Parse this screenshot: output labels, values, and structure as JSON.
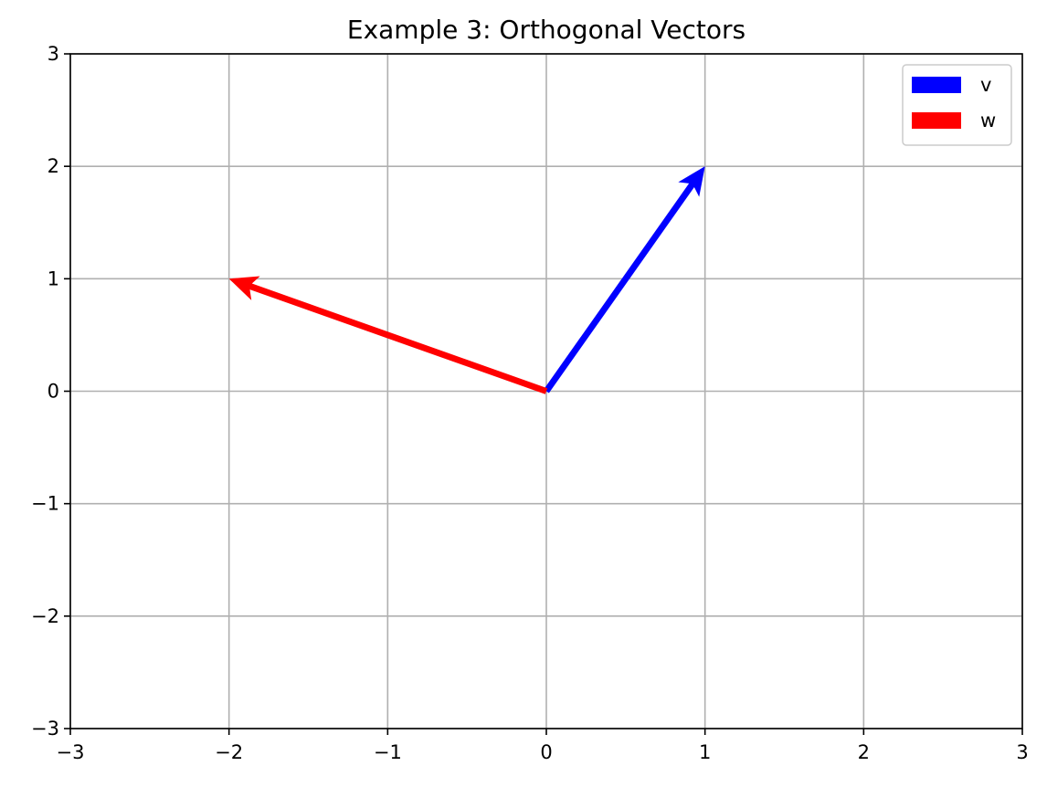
{
  "chart_data": {
    "type": "quiver",
    "title": "Example 3: Orthogonal Vectors",
    "xlabel": "",
    "ylabel": "",
    "xlim": [
      -3,
      3
    ],
    "ylim": [
      -3,
      3
    ],
    "xticks": [
      "−3",
      "−2",
      "−1",
      "0",
      "1",
      "2",
      "3"
    ],
    "yticks": [
      "−3",
      "−2",
      "−1",
      "0",
      "1",
      "2",
      "3"
    ],
    "grid": true,
    "legend_position": "top-right",
    "series": [
      {
        "name": "v",
        "color": "#0000ff",
        "x0": 0,
        "y0": 0,
        "dx": 1,
        "dy": 2
      },
      {
        "name": "w",
        "color": "#ff0000",
        "x0": 0,
        "y0": 0,
        "dx": -2,
        "dy": 1
      }
    ]
  }
}
